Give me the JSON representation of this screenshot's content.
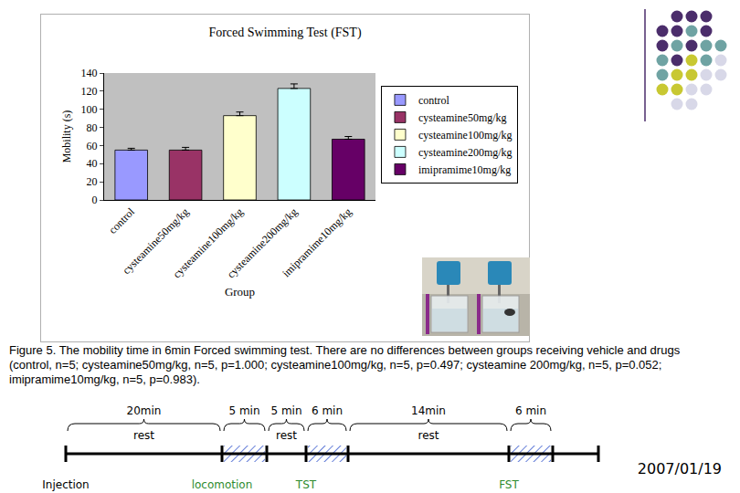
{
  "chart_data": {
    "type": "bar",
    "title": "Forced Swimming Test (FST)",
    "x_label": "Group",
    "y_label": "Mobility (s)",
    "categories": [
      "control",
      "cysteamine50mg/kg",
      "cysteamine100mg/kg",
      "cysteamine200mg/kg",
      "imipramime10mg/kg"
    ],
    "values": [
      55,
      55,
      93,
      123,
      67
    ],
    "errors": [
      2,
      3,
      4,
      5,
      3
    ],
    "colors": [
      "#9999ff",
      "#993366",
      "#ffffcc",
      "#ccffff",
      "#660066"
    ],
    "ylim": [
      0,
      140
    ],
    "yticks": [
      0,
      20,
      40,
      60,
      80,
      100,
      120,
      140
    ],
    "grid": false,
    "legend": "right"
  },
  "caption": "Figure 5. The mobility time in 6min Forced swimming test. There are no differences between groups receiving vehicle and drugs (control, n=5; cysteamine50mg/kg, n=5, p=1.000; cysteamine100mg/kg, n=5, p=0.497; cysteamine 200mg/kg, n=5, p=0.052; imipramime10mg/kg, n=5, p=0.983).",
  "timeline": {
    "segments": [
      {
        "duration": "20min",
        "label": "rest"
      },
      {
        "duration": "5 min",
        "hatched": true
      },
      {
        "duration": "5 min",
        "label": "rest"
      },
      {
        "duration": "6 min",
        "hatched": true
      },
      {
        "duration": "14min",
        "label": "rest"
      },
      {
        "duration": "6 min",
        "hatched": true
      }
    ],
    "events": [
      "Injection",
      "locomotion",
      "TST",
      "FST"
    ]
  },
  "date": "2007/01/19"
}
